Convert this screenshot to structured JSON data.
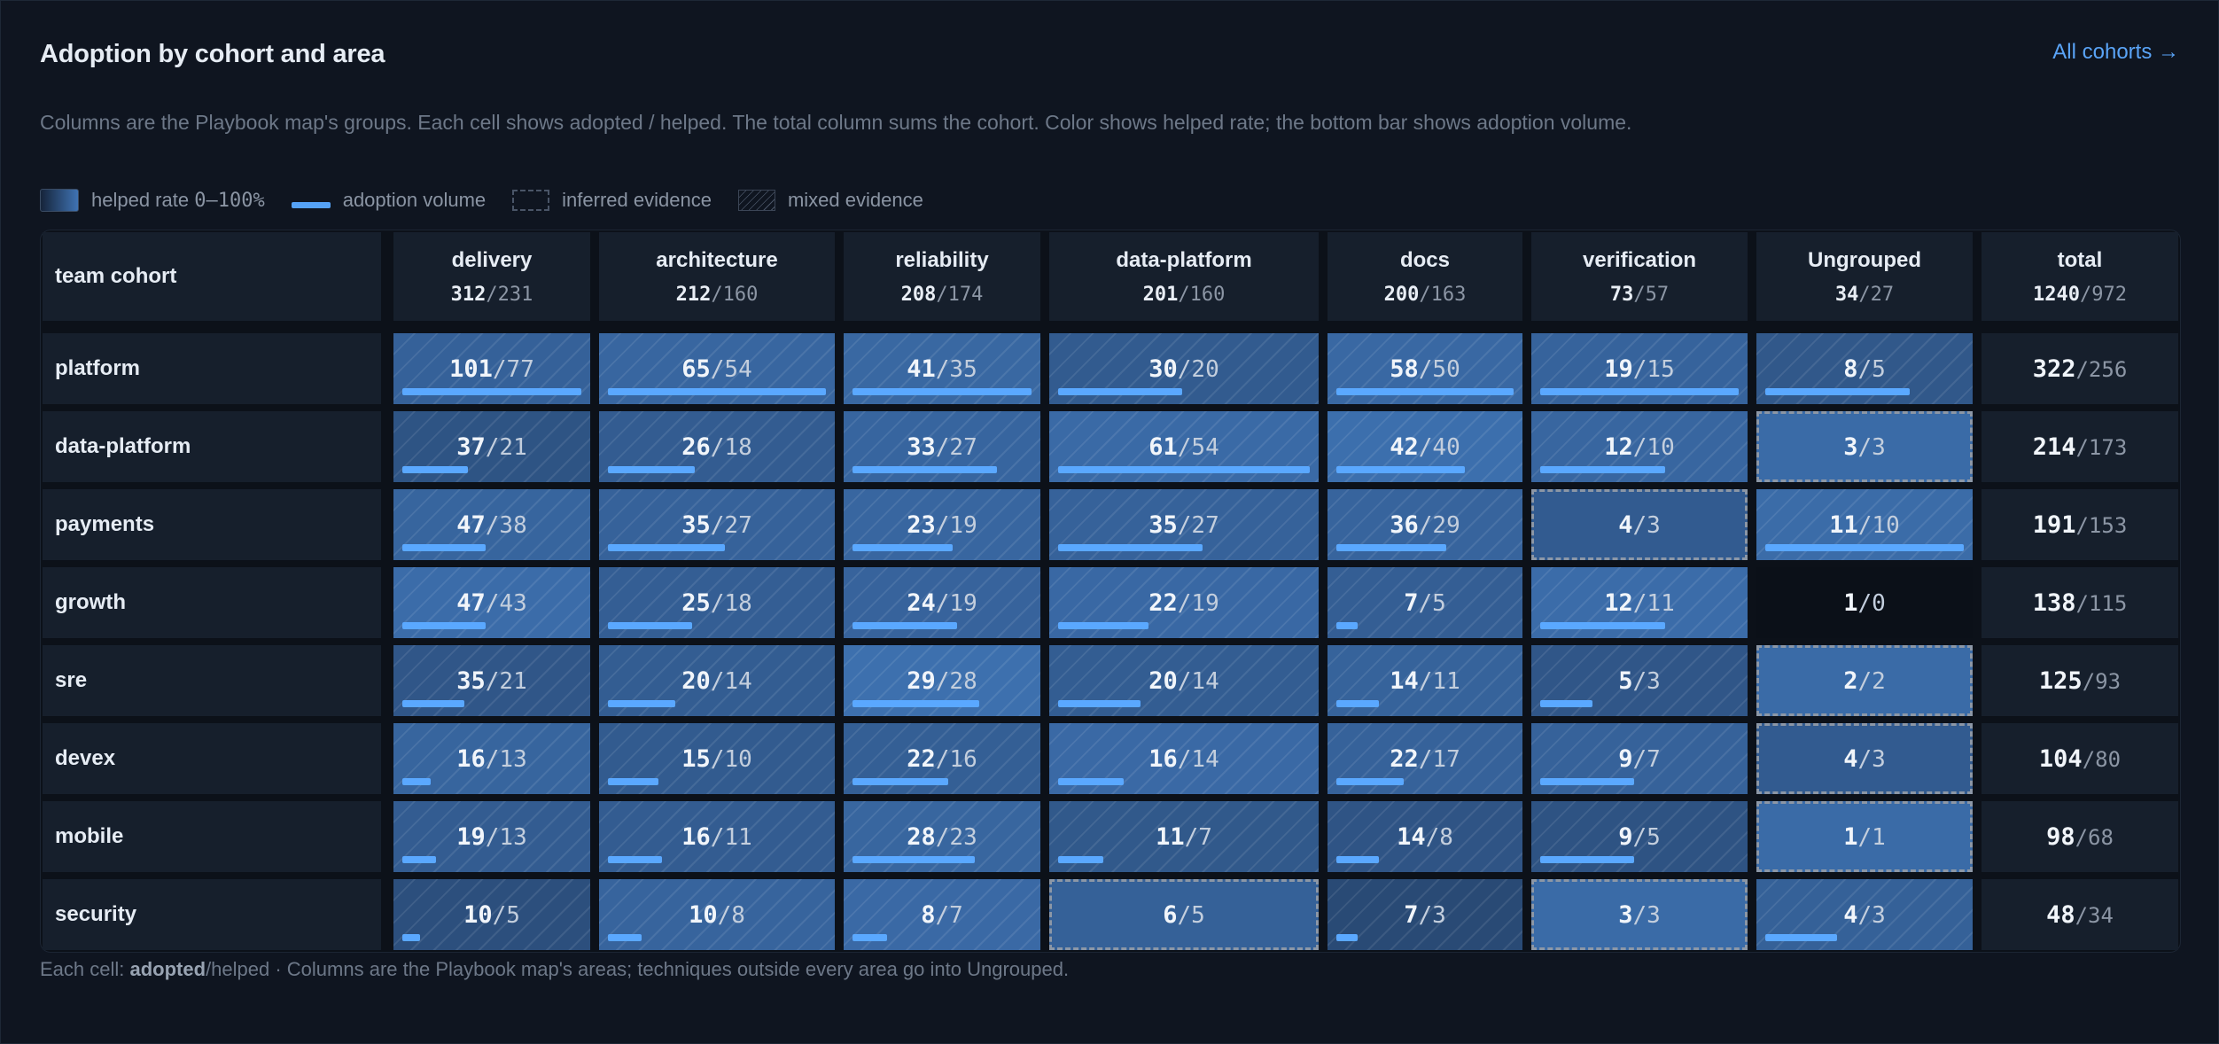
{
  "title": "Adoption by cohort and area",
  "link_label": "All cohorts →",
  "subtitle": "Columns are the Playbook map's groups. Each cell shows adopted / helped. The total column sums the cohort. Color shows helped rate; the bottom bar shows adoption volume.",
  "legend": {
    "helped_rate": "helped rate",
    "helped_range": "0–100%",
    "adoption_volume": "adoption volume",
    "inferred": "inferred evidence",
    "mixed": "mixed evidence"
  },
  "corner_label": "team cohort",
  "columns": [
    {
      "name": "delivery",
      "adopted": 312,
      "helped": 231
    },
    {
      "name": "architecture",
      "adopted": 212,
      "helped": 160
    },
    {
      "name": "reliability",
      "adopted": 208,
      "helped": 174
    },
    {
      "name": "data-platform",
      "adopted": 201,
      "helped": 160
    },
    {
      "name": "docs",
      "adopted": 200,
      "helped": 163
    },
    {
      "name": "verification",
      "adopted": 73,
      "helped": 57
    },
    {
      "name": "Ungrouped",
      "adopted": 34,
      "helped": 27
    },
    {
      "name": "total",
      "adopted": 1240,
      "helped": 972
    }
  ],
  "rows": [
    {
      "cohort": "platform",
      "total": [
        322,
        256
      ],
      "cells": [
        {
          "a": 101,
          "h": 77,
          "ev": "mixed"
        },
        {
          "a": 65,
          "h": 54,
          "ev": "mixed"
        },
        {
          "a": 41,
          "h": 35,
          "ev": "mixed"
        },
        {
          "a": 30,
          "h": 20,
          "ev": "mixed"
        },
        {
          "a": 58,
          "h": 50,
          "ev": "mixed"
        },
        {
          "a": 19,
          "h": 15,
          "ev": "mixed"
        },
        {
          "a": 8,
          "h": 5,
          "ev": "mixed"
        }
      ]
    },
    {
      "cohort": "data-platform",
      "total": [
        214,
        173
      ],
      "cells": [
        {
          "a": 37,
          "h": 21,
          "ev": "mixed"
        },
        {
          "a": 26,
          "h": 18,
          "ev": "mixed"
        },
        {
          "a": 33,
          "h": 27,
          "ev": "mixed"
        },
        {
          "a": 61,
          "h": 54,
          "ev": "mixed"
        },
        {
          "a": 42,
          "h": 40,
          "ev": "mixed"
        },
        {
          "a": 12,
          "h": 10,
          "ev": "mixed"
        },
        {
          "a": 3,
          "h": 3,
          "ev": "inferred"
        }
      ]
    },
    {
      "cohort": "payments",
      "total": [
        191,
        153
      ],
      "cells": [
        {
          "a": 47,
          "h": 38,
          "ev": "mixed"
        },
        {
          "a": 35,
          "h": 27,
          "ev": "mixed"
        },
        {
          "a": 23,
          "h": 19,
          "ev": "mixed"
        },
        {
          "a": 35,
          "h": 27,
          "ev": "mixed"
        },
        {
          "a": 36,
          "h": 29,
          "ev": "mixed"
        },
        {
          "a": 4,
          "h": 3,
          "ev": "inferred"
        },
        {
          "a": 11,
          "h": 10,
          "ev": "mixed"
        }
      ]
    },
    {
      "cohort": "growth",
      "total": [
        138,
        115
      ],
      "cells": [
        {
          "a": 47,
          "h": 43,
          "ev": "mixed"
        },
        {
          "a": 25,
          "h": 18,
          "ev": "mixed"
        },
        {
          "a": 24,
          "h": 19,
          "ev": "mixed"
        },
        {
          "a": 22,
          "h": 19,
          "ev": "mixed"
        },
        {
          "a": 7,
          "h": 5,
          "ev": "mixed"
        },
        {
          "a": 12,
          "h": 11,
          "ev": "mixed"
        },
        {
          "a": 1,
          "h": 0,
          "ev": "none"
        }
      ]
    },
    {
      "cohort": "sre",
      "total": [
        125,
        93
      ],
      "cells": [
        {
          "a": 35,
          "h": 21,
          "ev": "mixed"
        },
        {
          "a": 20,
          "h": 14,
          "ev": "mixed"
        },
        {
          "a": 29,
          "h": 28,
          "ev": "mixed"
        },
        {
          "a": 20,
          "h": 14,
          "ev": "mixed"
        },
        {
          "a": 14,
          "h": 11,
          "ev": "mixed"
        },
        {
          "a": 5,
          "h": 3,
          "ev": "mixed"
        },
        {
          "a": 2,
          "h": 2,
          "ev": "inferred"
        }
      ]
    },
    {
      "cohort": "devex",
      "total": [
        104,
        80
      ],
      "cells": [
        {
          "a": 16,
          "h": 13,
          "ev": "mixed"
        },
        {
          "a": 15,
          "h": 10,
          "ev": "mixed"
        },
        {
          "a": 22,
          "h": 16,
          "ev": "mixed"
        },
        {
          "a": 16,
          "h": 14,
          "ev": "mixed"
        },
        {
          "a": 22,
          "h": 17,
          "ev": "mixed"
        },
        {
          "a": 9,
          "h": 7,
          "ev": "mixed"
        },
        {
          "a": 4,
          "h": 3,
          "ev": "inferred"
        }
      ]
    },
    {
      "cohort": "mobile",
      "total": [
        98,
        68
      ],
      "cells": [
        {
          "a": 19,
          "h": 13,
          "ev": "mixed"
        },
        {
          "a": 16,
          "h": 11,
          "ev": "mixed"
        },
        {
          "a": 28,
          "h": 23,
          "ev": "mixed"
        },
        {
          "a": 11,
          "h": 7,
          "ev": "mixed"
        },
        {
          "a": 14,
          "h": 8,
          "ev": "mixed"
        },
        {
          "a": 9,
          "h": 5,
          "ev": "mixed"
        },
        {
          "a": 1,
          "h": 1,
          "ev": "inferred"
        }
      ]
    },
    {
      "cohort": "security",
      "total": [
        48,
        34
      ],
      "cells": [
        {
          "a": 10,
          "h": 5,
          "ev": "mixed"
        },
        {
          "a": 10,
          "h": 8,
          "ev": "mixed"
        },
        {
          "a": 8,
          "h": 7,
          "ev": "mixed"
        },
        {
          "a": 6,
          "h": 5,
          "ev": "inferred"
        },
        {
          "a": 7,
          "h": 3,
          "ev": "mixed"
        },
        {
          "a": 3,
          "h": 3,
          "ev": "inferred"
        },
        {
          "a": 4,
          "h": 3,
          "ev": "mixed"
        }
      ]
    }
  ],
  "footer": {
    "prefix": "Each cell: ",
    "bold": "adopted",
    "rest": "/helped · Columns are the Playbook map's areas; techniques outside every area go into Ungrouped."
  }
}
